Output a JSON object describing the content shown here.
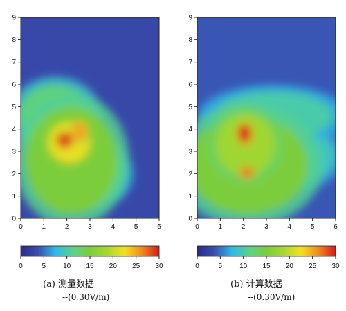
{
  "chart_data": [
    {
      "type": "heatmap",
      "title": "",
      "caption": "(a) 测量数据",
      "unit": "--(0.30V/m)",
      "xlabel": "",
      "ylabel": "",
      "x_ticks": [
        "0",
        "1",
        "2",
        "3",
        "4",
        "5",
        "6"
      ],
      "y_ticks": [
        "0",
        "1",
        "2",
        "3",
        "4",
        "5",
        "6",
        "7",
        "8",
        "9"
      ],
      "xlim": [
        0,
        6
      ],
      "ylim": [
        0,
        9
      ],
      "background_level": 3,
      "hotspots": [
        {
          "x": 1.9,
          "y": 3.5,
          "value": 29,
          "rx": 0.35,
          "ry": 0.35
        },
        {
          "x": 2.55,
          "y": 3.9,
          "value": 25,
          "rx": 0.35,
          "ry": 0.45
        },
        {
          "x": 2.1,
          "y": 3.4,
          "value": 22,
          "rx": 0.9,
          "ry": 0.9
        },
        {
          "x": 2.2,
          "y": 2.6,
          "value": 15,
          "rx": 2.0,
          "ry": 2.4
        },
        {
          "x": 1.5,
          "y": 4.6,
          "value": 12,
          "rx": 1.6,
          "ry": 1.4
        },
        {
          "x": 3.0,
          "y": 2.0,
          "value": 11,
          "rx": 1.5,
          "ry": 1.3
        }
      ]
    },
    {
      "type": "heatmap",
      "title": "",
      "caption": "(b) 计算数据",
      "unit": "--(0.30V/m)",
      "xlabel": "",
      "ylabel": "",
      "x_ticks": [
        "0",
        "1",
        "2",
        "3",
        "4",
        "5",
        "6"
      ],
      "y_ticks": [
        "0",
        "1",
        "2",
        "3",
        "4",
        "5",
        "6",
        "7",
        "8",
        "9"
      ],
      "xlim": [
        0,
        6
      ],
      "ylim": [
        0,
        9
      ],
      "background_level": 4,
      "hotspots": [
        {
          "x": 2.05,
          "y": 3.8,
          "value": 30,
          "rx": 0.3,
          "ry": 0.45
        },
        {
          "x": 2.15,
          "y": 2.05,
          "value": 27,
          "rx": 0.3,
          "ry": 0.25
        },
        {
          "x": 2.1,
          "y": 3.3,
          "value": 18,
          "rx": 1.3,
          "ry": 1.4
        },
        {
          "x": 2.2,
          "y": 2.4,
          "value": 15,
          "rx": 2.6,
          "ry": 2.2
        },
        {
          "x": 3.3,
          "y": 4.6,
          "value": 10,
          "rx": 2.6,
          "ry": 1.1
        },
        {
          "x": 4.6,
          "y": 2.8,
          "value": 9,
          "rx": 1.4,
          "ry": 1.2
        }
      ]
    }
  ],
  "colorbar": {
    "ticks": [
      "0",
      "5",
      "10",
      "15",
      "20",
      "25",
      "30"
    ],
    "min": 0,
    "max": 30,
    "colors": [
      "#2a2a8c",
      "#3a4fb0",
      "#2fb8e8",
      "#58d38a",
      "#7ccd3a",
      "#a8d830",
      "#f5e020",
      "#f08a20",
      "#d81818"
    ]
  }
}
